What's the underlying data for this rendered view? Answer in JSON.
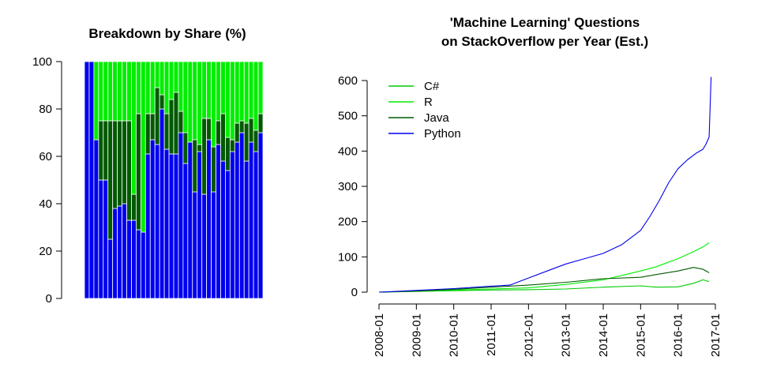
{
  "colors": {
    "python": "#0000ee",
    "java": "#005a00",
    "r": "#00ee00",
    "csharp": "#00cc00",
    "r_bar": "#00ee00",
    "bar_border": "#ffffff",
    "axis": "#000000"
  },
  "chart_data": [
    {
      "type": "bar",
      "stacked": true,
      "title": "Breakdown by Share (%)",
      "xlabel": "",
      "ylabel": "",
      "ylim": [
        0,
        100
      ],
      "yticks": [
        0,
        20,
        40,
        60,
        80,
        100
      ],
      "yticks_labels": [
        "0",
        "20",
        "40",
        "60",
        "80",
        "100"
      ],
      "grid": false,
      "series": [
        {
          "key": "python",
          "values": [
            100,
            100,
            67,
            50,
            50,
            25,
            38,
            39,
            40,
            33,
            33,
            29,
            28,
            61,
            67,
            65,
            80,
            63,
            61,
            61,
            70,
            57,
            66,
            45,
            62,
            44,
            67,
            45,
            65,
            58,
            54,
            62,
            66,
            70,
            58,
            66,
            62,
            70
          ]
        },
        {
          "key": "java",
          "values": [
            0,
            0,
            0,
            25,
            25,
            50,
            37,
            36,
            35,
            42,
            11,
            49,
            0,
            17,
            11,
            24,
            6,
            15,
            23,
            26,
            9,
            13,
            0,
            22,
            3,
            32,
            9,
            19,
            10,
            20,
            14,
            5,
            8,
            5,
            16,
            10,
            9,
            8
          ]
        },
        {
          "key": "r",
          "values": [
            0,
            0,
            33,
            25,
            25,
            25,
            25,
            25,
            25,
            25,
            56,
            22,
            72,
            22,
            22,
            11,
            14,
            22,
            16,
            13,
            21,
            30,
            34,
            33,
            35,
            24,
            24,
            36,
            25,
            22,
            32,
            33,
            26,
            25,
            26,
            24,
            29,
            22
          ]
        }
      ]
    },
    {
      "type": "line",
      "title": "'Machine Learning' Questions\non StackOverflow per Year (Est.)",
      "title_lines": [
        "'Machine Learning' Questions",
        "on StackOverflow per Year (Est.)"
      ],
      "xlabel": "",
      "ylabel": "",
      "ylim": [
        0,
        600
      ],
      "yticks": [
        0,
        100,
        200,
        300,
        400,
        500,
        600
      ],
      "yticks_labels": [
        "0",
        "100",
        "200",
        "300",
        "400",
        "500",
        "600"
      ],
      "xlim": [
        "2008-01",
        "2017-01"
      ],
      "xticks": [
        "2008-01",
        "2009-01",
        "2010-01",
        "2011-01",
        "2012-01",
        "2013-01",
        "2014-01",
        "2015-01",
        "2016-01",
        "2017-01"
      ],
      "grid": false,
      "legend": {
        "position": "top-left"
      },
      "series": [
        {
          "name": "C#",
          "key": "csharp",
          "x": [
            "2008-01",
            "2009-01",
            "2010-01",
            "2011-01",
            "2012-01",
            "2013-01",
            "2014-01",
            "2015-01",
            "2015-06",
            "2016-01",
            "2016-06",
            "2016-09",
            "2016-11"
          ],
          "y": [
            0,
            2,
            4,
            6,
            7,
            9,
            14,
            18,
            14,
            15,
            25,
            35,
            30
          ]
        },
        {
          "name": "R",
          "key": "r",
          "x": [
            "2008-01",
            "2009-01",
            "2010-01",
            "2011-01",
            "2012-01",
            "2013-01",
            "2014-01",
            "2015-01",
            "2015-06",
            "2016-01",
            "2016-06",
            "2016-09",
            "2016-11"
          ],
          "y": [
            0,
            3,
            6,
            9,
            12,
            22,
            35,
            60,
            72,
            95,
            115,
            128,
            140
          ]
        },
        {
          "name": "Java",
          "key": "java",
          "x": [
            "2008-01",
            "2009-01",
            "2010-01",
            "2011-01",
            "2012-01",
            "2013-01",
            "2014-01",
            "2015-01",
            "2015-06",
            "2016-01",
            "2016-06",
            "2016-09",
            "2016-11"
          ],
          "y": [
            0,
            3,
            8,
            14,
            20,
            28,
            38,
            42,
            50,
            60,
            70,
            65,
            55
          ]
        },
        {
          "name": "Python",
          "key": "python",
          "x": [
            "2008-01",
            "2009-01",
            "2010-01",
            "2011-01",
            "2011-07",
            "2012-01",
            "2012-07",
            "2013-01",
            "2013-07",
            "2014-01",
            "2014-07",
            "2015-01",
            "2015-04",
            "2015-07",
            "2015-10",
            "2016-01",
            "2016-04",
            "2016-07",
            "2016-09",
            "2016-10",
            "2016-11",
            "2016-11-20"
          ],
          "y": [
            0,
            5,
            10,
            17,
            20,
            40,
            60,
            80,
            95,
            110,
            135,
            175,
            215,
            260,
            310,
            350,
            375,
            395,
            405,
            420,
            440,
            610
          ]
        }
      ]
    }
  ]
}
